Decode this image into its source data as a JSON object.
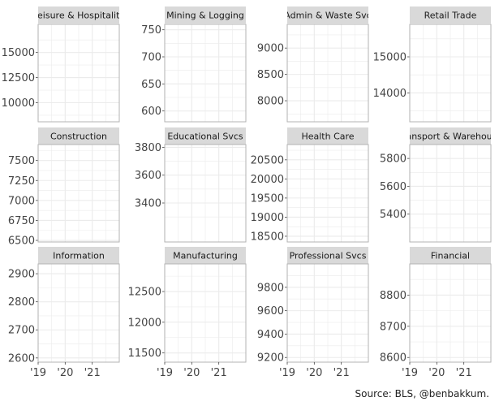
{
  "chart_data": {
    "type": "line",
    "layout": "small-multiples",
    "title": "",
    "xlabel": "",
    "ylabel": "",
    "x_ticks": [
      "'19",
      "'20",
      "'21"
    ],
    "xlim": [
      2019,
      2022
    ],
    "grid": true,
    "panels": [
      {
        "name": "Leisure & Hospitality",
        "y_ticks": [
          10000,
          12500,
          15000
        ],
        "ylim": [
          8100,
          17800
        ]
      },
      {
        "name": "Mining & Logging",
        "y_ticks": [
          600,
          650,
          700,
          750
        ],
        "ylim": [
          580,
          760
        ]
      },
      {
        "name": "Admin & Waste Svc",
        "y_ticks": [
          8000,
          8500,
          9000
        ],
        "ylim": [
          7600,
          9450
        ]
      },
      {
        "name": "Retail Trade",
        "y_ticks": [
          14000,
          15000
        ],
        "ylim": [
          13200,
          15900
        ]
      },
      {
        "name": "Construction",
        "y_ticks": [
          6500,
          6750,
          7000,
          7250,
          7500
        ],
        "ylim": [
          6480,
          7700
        ]
      },
      {
        "name": "Educational Svcs",
        "y_ticks": [
          3400,
          3600,
          3800
        ],
        "ylim": [
          3120,
          3820
        ]
      },
      {
        "name": "Health Care",
        "y_ticks": [
          18500,
          19000,
          19500,
          20000,
          20500
        ],
        "ylim": [
          18350,
          20900
        ]
      },
      {
        "name": "Transport & Warehouse",
        "y_ticks": [
          5400,
          5600,
          5800
        ],
        "ylim": [
          5200,
          5900
        ]
      },
      {
        "name": "Information",
        "y_ticks": [
          2600,
          2700,
          2800,
          2900
        ],
        "ylim": [
          2585,
          2935
        ]
      },
      {
        "name": "Manufacturing",
        "y_ticks": [
          11500,
          12000,
          12500
        ],
        "ylim": [
          11350,
          12950
        ]
      },
      {
        "name": "Professional Svcs",
        "y_ticks": [
          9200,
          9400,
          9600,
          9800
        ],
        "ylim": [
          9160,
          10000
        ]
      },
      {
        "name": "Financial",
        "y_ticks": [
          8600,
          8700,
          8800
        ],
        "ylim": [
          8585,
          8900
        ]
      }
    ],
    "caption": "Source: BLS, @benbakkum."
  },
  "colors": {
    "strip_fill": "#d9d9d9",
    "grid": "#ebebeb",
    "panel_border": "#b3b3b3",
    "tick_text": "#444444"
  }
}
